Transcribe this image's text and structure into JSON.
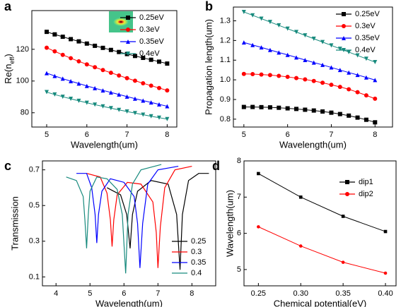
{
  "chart_data": [
    {
      "type": "line",
      "label": "a",
      "xlabel": "Wavelength(um)",
      "ylabel": [
        "Re(n",
        "eff",
        ")"
      ],
      "xlim": [
        4.63,
        8.24
      ],
      "ylim": [
        71,
        144.4
      ],
      "xticks": [
        5,
        6,
        7,
        8
      ],
      "yticks": [
        80,
        100,
        120
      ],
      "legend": "upper right",
      "x": [
        5,
        5.2,
        5.4,
        5.6,
        5.8,
        6,
        6.2,
        6.4,
        6.6,
        6.8,
        7,
        7.2,
        7.4,
        7.6,
        7.8,
        8
      ],
      "series": [
        {
          "name": "0.25eV",
          "color": "#000000",
          "marker": "square",
          "values": [
            131,
            129.4,
            127.9,
            126.4,
            125,
            123.6,
            122.2,
            120.9,
            119.6,
            118.3,
            117,
            115.8,
            114.6,
            113.4,
            112.2,
            111
          ]
        },
        {
          "name": "0.3eV",
          "color": "#ff0000",
          "marker": "circle",
          "values": [
            121,
            118.7,
            116.5,
            114.4,
            112.4,
            110.5,
            108.7,
            106.9,
            105.2,
            103.5,
            101.8,
            100.2,
            98.6,
            97.1,
            95.6,
            94.1
          ]
        },
        {
          "name": "0.35eV",
          "color": "#0000ff",
          "marker": "triangle-up",
          "values": [
            105,
            103.2,
            101.5,
            99.9,
            98.4,
            96.9,
            95.5,
            94.1,
            92.8,
            91.5,
            90.2,
            88.9,
            87.7,
            86.5,
            85.3,
            84.1
          ]
        },
        {
          "name": "0.4eV",
          "color": "#178a7d",
          "marker": "triangle-down",
          "values": [
            93,
            91.5,
            90.1,
            88.8,
            87.5,
            86.3,
            85.1,
            84,
            82.9,
            81.8,
            80.8,
            79.8,
            78.8,
            77.8,
            76.9,
            76
          ]
        }
      ]
    },
    {
      "type": "line",
      "label": "b",
      "xlabel": "Wavelength(um)",
      "ylabel": "Propagation length(um)",
      "xlim": [
        4.76,
        8.4
      ],
      "ylim": [
        0.76,
        1.37
      ],
      "xticks": [
        5,
        6,
        7,
        8
      ],
      "yticks": [
        0.8,
        0.9,
        {
          "value": 1,
          "label": "1.0"
        },
        1.1,
        1.2,
        1.3
      ],
      "legend": "upper right",
      "x": [
        5,
        5.2,
        5.4,
        5.6,
        5.8,
        6,
        6.2,
        6.4,
        6.6,
        6.8,
        7,
        7.2,
        7.4,
        7.6,
        7.8,
        8
      ],
      "series": [
        {
          "name": "0.25eV",
          "color": "#000000",
          "marker": "square",
          "values": [
            0.862,
            0.862,
            0.861,
            0.86,
            0.858,
            0.855,
            0.852,
            0.848,
            0.844,
            0.839,
            0.833,
            0.826,
            0.818,
            0.808,
            0.797,
            0.784
          ]
        },
        {
          "name": "0.3eV",
          "color": "#ff0000",
          "marker": "circle",
          "values": [
            1.03,
            1.029,
            1.027,
            1.024,
            1.02,
            1.015,
            1.009,
            1.002,
            0.994,
            0.985,
            0.975,
            0.964,
            0.952,
            0.937,
            0.921,
            0.904
          ]
        },
        {
          "name": "0.35eV",
          "color": "#0000ff",
          "marker": "triangle-up",
          "values": [
            1.19,
            1.177,
            1.165,
            1.152,
            1.139,
            1.127,
            1.114,
            1.101,
            1.088,
            1.076,
            1.063,
            1.05,
            1.037,
            1.025,
            1.012,
            0.999
          ]
        },
        {
          "name": "0.4eV",
          "color": "#178a7d",
          "marker": "triangle-down",
          "values": [
            1.345,
            1.328,
            1.311,
            1.294,
            1.277,
            1.26,
            1.243,
            1.226,
            1.209,
            1.192,
            1.175,
            1.158,
            1.141,
            1.124,
            1.107,
            1.09
          ]
        }
      ]
    },
    {
      "type": "line",
      "label": "c",
      "xlabel": "Wavelength(um)",
      "ylabel": "Transmission",
      "xlim": [
        3.6,
        8.7
      ],
      "ylim": [
        0.05,
        0.75
      ],
      "xticks": [
        4,
        5,
        6,
        7,
        8
      ],
      "yticks": [
        0.1,
        0.3,
        0.5,
        0.7
      ],
      "legend": "lower right",
      "series": [
        {
          "name": "0.25",
          "color": "#000000",
          "x": [
            5.5,
            5.9,
            6.08,
            6.18,
            6.25,
            6.4,
            6.8,
            7.3,
            7.55,
            7.65,
            7.72,
            7.9,
            8.2,
            8.5
          ],
          "values": [
            0.6,
            0.56,
            0.45,
            0.26,
            0.45,
            0.58,
            0.64,
            0.62,
            0.45,
            0.14,
            0.45,
            0.64,
            0.68,
            0.68
          ]
        },
        {
          "name": "0.3",
          "color": "#ff0000",
          "x": [
            4.9,
            5.3,
            5.5,
            5.6,
            5.65,
            5.7,
            5.8,
            6.1,
            6.5,
            6.85,
            6.95,
            7,
            7.07,
            7.2,
            7.5,
            8
          ],
          "values": [
            0.68,
            0.66,
            0.57,
            0.42,
            0.27,
            0.42,
            0.56,
            0.63,
            0.62,
            0.52,
            0.35,
            0.15,
            0.38,
            0.6,
            0.7,
            0.72
          ]
        },
        {
          "name": "0.35",
          "color": "#0000ff",
          "x": [
            4.6,
            4.9,
            5.05,
            5.15,
            5.2,
            5.25,
            5.35,
            5.6,
            6,
            6.3,
            6.4,
            6.47,
            6.55,
            6.7,
            7,
            7.6
          ],
          "values": [
            0.68,
            0.68,
            0.6,
            0.45,
            0.29,
            0.45,
            0.58,
            0.65,
            0.63,
            0.55,
            0.4,
            0.15,
            0.4,
            0.62,
            0.7,
            0.72
          ]
        },
        {
          "name": "0.4",
          "color": "#178a7d",
          "x": [
            4.3,
            4.6,
            4.8,
            4.85,
            4.9,
            4.95,
            5,
            5.2,
            5.5,
            5.8,
            5.95,
            6.05,
            6.12,
            6.25,
            6.5,
            7.1
          ],
          "values": [
            0.66,
            0.64,
            0.55,
            0.42,
            0.26,
            0.45,
            0.58,
            0.66,
            0.65,
            0.59,
            0.45,
            0.12,
            0.45,
            0.62,
            0.7,
            0.73
          ]
        }
      ]
    },
    {
      "type": "line",
      "label": "d",
      "xlabel": "Chemical potential(eV)",
      "ylabel": "Wavelength(um)",
      "xlim": [
        0.233,
        0.4125
      ],
      "ylim": [
        4.55,
        8.0
      ],
      "xticks": [
        0.25,
        {
          "value": 0.3,
          "label": "0.30"
        },
        0.35,
        {
          "value": 0.4,
          "label": "0.40"
        }
      ],
      "yticks": [
        5,
        6,
        7,
        8
      ],
      "legend": "upper right",
      "x": [
        0.25,
        0.3,
        0.35,
        0.4
      ],
      "series": [
        {
          "name": "dip1",
          "color": "#000000",
          "marker": "square",
          "values": [
            7.65,
            7.0,
            6.47,
            6.05
          ]
        },
        {
          "name": "dip2",
          "color": "#ff0000",
          "marker": "circle",
          "values": [
            6.18,
            5.65,
            5.2,
            4.9
          ]
        }
      ]
    }
  ]
}
